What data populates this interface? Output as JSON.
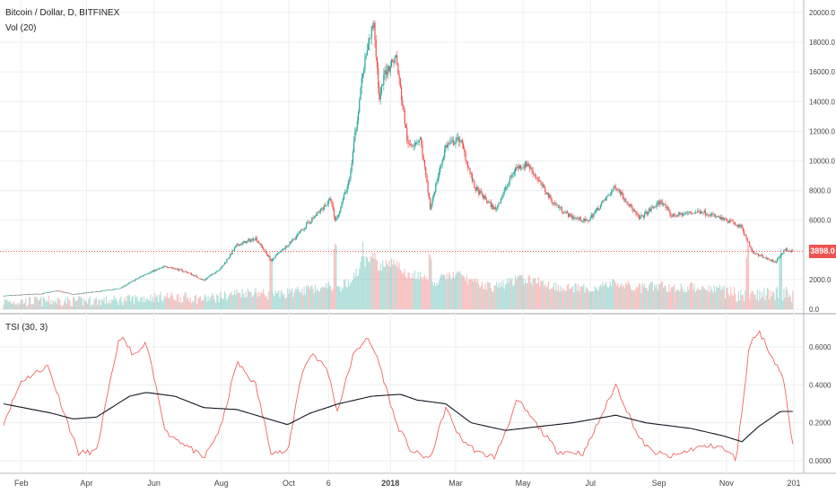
{
  "colors": {
    "up": "#26a69a",
    "down": "#ef5350",
    "grid": "#eceff2",
    "axis": "#a7a7a7",
    "text": "#444444",
    "tsi": "#ef5350",
    "signal": "#131722",
    "last_price": "#ef5350"
  },
  "legend": {
    "symbol": "Bitcoin / Dollar, D, BITFINEX",
    "volume": "Vol (20)",
    "tsi": "TSI (30, 3)"
  },
  "last_price_label": "3898.0",
  "chart_data": [
    {
      "type": "candlestick",
      "title": "Bitcoin / Dollar, D, BITFINEX",
      "ylim": [
        0,
        20500
      ],
      "y_ticks": [
        "20000.0",
        "18000.0",
        "16000.0",
        "14000.0",
        "12000.0",
        "10000.0",
        "8000.0",
        "6000.0",
        "4000.0",
        "2000.0",
        "0.0"
      ],
      "x_labels": [
        "Feb",
        "Apr",
        "Jun",
        "Aug",
        "Oct",
        "6",
        "2018",
        "Mar",
        "May",
        "Jul",
        "Sep",
        "Nov",
        "201"
      ],
      "x_range": [
        "2017-01-16",
        "2019-01-01"
      ],
      "last_price": 3898.0,
      "close_anchors": [
        [
          "2017-01-16",
          900
        ],
        [
          "2017-02-01",
          970
        ],
        [
          "2017-02-20",
          1050
        ],
        [
          "2017-03-05",
          1250
        ],
        [
          "2017-03-20",
          1000
        ],
        [
          "2017-04-10",
          1180
        ],
        [
          "2017-05-01",
          1400
        ],
        [
          "2017-05-25",
          2400
        ],
        [
          "2017-06-12",
          2900
        ],
        [
          "2017-07-01",
          2500
        ],
        [
          "2017-07-16",
          1950
        ],
        [
          "2017-08-01",
          2800
        ],
        [
          "2017-08-15",
          4300
        ],
        [
          "2017-09-01",
          4800
        ],
        [
          "2017-09-15",
          3300
        ],
        [
          "2017-09-30",
          4300
        ],
        [
          "2017-10-20",
          5900
        ],
        [
          "2017-11-08",
          7400
        ],
        [
          "2017-11-12",
          5900
        ],
        [
          "2017-11-25",
          8700
        ],
        [
          "2017-12-07",
          16000
        ],
        [
          "2017-12-17",
          19500
        ],
        [
          "2017-12-22",
          14000
        ],
        [
          "2017-12-27",
          16000
        ],
        [
          "2018-01-06",
          17000
        ],
        [
          "2018-01-17",
          11000
        ],
        [
          "2018-01-28",
          11500
        ],
        [
          "2018-02-06",
          6900
        ],
        [
          "2018-02-20",
          11000
        ],
        [
          "2018-03-05",
          11500
        ],
        [
          "2018-03-18",
          8200
        ],
        [
          "2018-04-06",
          6700
        ],
        [
          "2018-04-24",
          9500
        ],
        [
          "2018-05-05",
          9800
        ],
        [
          "2018-05-28",
          7200
        ],
        [
          "2018-06-12",
          6300
        ],
        [
          "2018-06-28",
          5900
        ],
        [
          "2018-07-24",
          8300
        ],
        [
          "2018-08-14",
          6100
        ],
        [
          "2018-09-03",
          7300
        ],
        [
          "2018-09-12",
          6300
        ],
        [
          "2018-10-10",
          6600
        ],
        [
          "2018-11-14",
          5600
        ],
        [
          "2018-11-25",
          3800
        ],
        [
          "2018-12-15",
          3200
        ],
        [
          "2018-12-24",
          4000
        ],
        [
          "2018-12-31",
          3898
        ]
      ]
    },
    {
      "type": "bar",
      "title": "Vol (20)",
      "note": "volume histogram colored by candle direction, bottom band of price pane",
      "spike_dates": [
        "2017-09-15",
        "2017-11-12",
        "2017-12-07",
        "2018-02-06",
        "2018-11-20",
        "2018-12-20"
      ]
    },
    {
      "type": "line",
      "title": "TSI (30, 3)",
      "ylim": [
        -0.02,
        0.72
      ],
      "y_ticks": [
        "0.6000",
        "0.4000",
        "0.2000",
        "0.0000"
      ],
      "series": [
        {
          "name": "",
          "color": "#ef5350",
          "anchors": [
            [
              "2017-01-16",
              0.2
            ],
            [
              "2017-02-01",
              0.42
            ],
            [
              "2017-02-25",
              0.5
            ],
            [
              "2017-03-15",
              0.2
            ],
            [
              "2017-03-25",
              0.04
            ],
            [
              "2017-04-10",
              0.05
            ],
            [
              "2017-05-01",
              0.66
            ],
            [
              "2017-05-15",
              0.55
            ],
            [
              "2017-05-25",
              0.62
            ],
            [
              "2017-06-12",
              0.15
            ],
            [
              "2017-07-01",
              0.08
            ],
            [
              "2017-07-16",
              0.01
            ],
            [
              "2017-08-01",
              0.18
            ],
            [
              "2017-08-15",
              0.52
            ],
            [
              "2017-09-01",
              0.4
            ],
            [
              "2017-09-15",
              0.05
            ],
            [
              "2017-09-30",
              0.04
            ],
            [
              "2017-10-12",
              0.45
            ],
            [
              "2017-10-22",
              0.57
            ],
            [
              "2017-11-05",
              0.48
            ],
            [
              "2017-11-14",
              0.26
            ],
            [
              "2017-11-28",
              0.55
            ],
            [
              "2017-12-10",
              0.65
            ],
            [
              "2017-12-20",
              0.55
            ],
            [
              "2018-01-06",
              0.2
            ],
            [
              "2018-01-20",
              0.05
            ],
            [
              "2018-02-06",
              0.01
            ],
            [
              "2018-02-20",
              0.28
            ],
            [
              "2018-03-05",
              0.12
            ],
            [
              "2018-03-22",
              0.04
            ],
            [
              "2018-04-06",
              0.02
            ],
            [
              "2018-04-26",
              0.32
            ],
            [
              "2018-05-12",
              0.2
            ],
            [
              "2018-06-01",
              0.05
            ],
            [
              "2018-06-25",
              0.04
            ],
            [
              "2018-07-24",
              0.4
            ],
            [
              "2018-08-14",
              0.12
            ],
            [
              "2018-08-25",
              0.05
            ],
            [
              "2018-09-12",
              0.02
            ],
            [
              "2018-10-05",
              0.07
            ],
            [
              "2018-10-25",
              0.08
            ],
            [
              "2018-11-10",
              0.01
            ],
            [
              "2018-11-22",
              0.62
            ],
            [
              "2018-12-01",
              0.68
            ],
            [
              "2018-12-12",
              0.55
            ],
            [
              "2018-12-22",
              0.45
            ],
            [
              "2018-12-31",
              0.08
            ]
          ]
        },
        {
          "name": "",
          "color": "#131722",
          "anchors": [
            [
              "2017-01-16",
              0.3
            ],
            [
              "2017-03-01",
              0.25
            ],
            [
              "2017-03-20",
              0.22
            ],
            [
              "2017-04-10",
              0.23
            ],
            [
              "2017-05-10",
              0.34
            ],
            [
              "2017-05-25",
              0.36
            ],
            [
              "2017-06-20",
              0.34
            ],
            [
              "2017-07-16",
              0.28
            ],
            [
              "2017-08-15",
              0.27
            ],
            [
              "2017-09-30",
              0.19
            ],
            [
              "2017-10-20",
              0.25
            ],
            [
              "2017-11-15",
              0.3
            ],
            [
              "2017-12-15",
              0.34
            ],
            [
              "2018-01-10",
              0.35
            ],
            [
              "2018-01-25",
              0.32
            ],
            [
              "2018-02-20",
              0.3
            ],
            [
              "2018-03-15",
              0.2
            ],
            [
              "2018-04-15",
              0.16
            ],
            [
              "2018-05-15",
              0.18
            ],
            [
              "2018-06-15",
              0.2
            ],
            [
              "2018-07-24",
              0.24
            ],
            [
              "2018-08-20",
              0.2
            ],
            [
              "2018-09-30",
              0.17
            ],
            [
              "2018-10-30",
              0.13
            ],
            [
              "2018-11-15",
              0.1
            ],
            [
              "2018-11-30",
              0.18
            ],
            [
              "2018-12-20",
              0.26
            ],
            [
              "2018-12-31",
              0.26
            ]
          ]
        }
      ]
    }
  ]
}
